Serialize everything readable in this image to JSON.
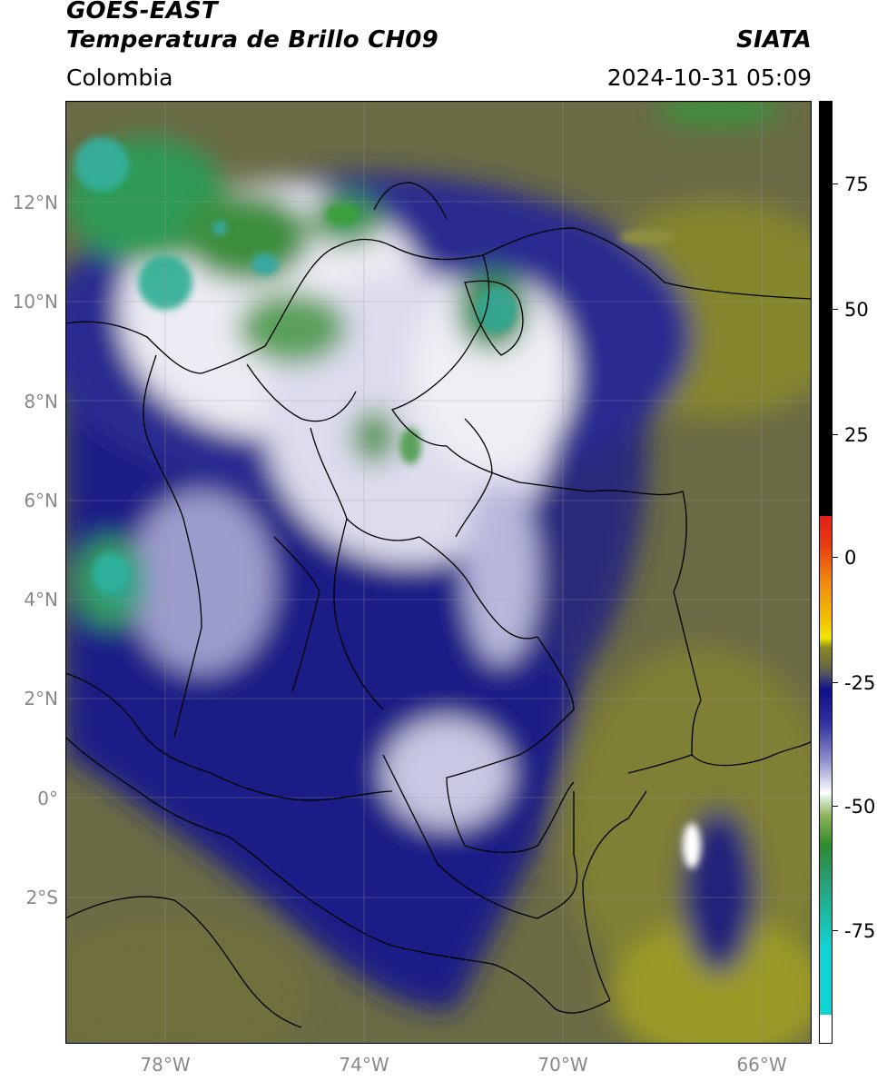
{
  "header": {
    "title_line1": "GOES-EAST",
    "title_line2": "Temperatura de Brillo CH09",
    "agency": "SIATA",
    "region": "Colombia",
    "datetime": "2024-10-31 05:09"
  },
  "map": {
    "lat_labels": [
      "12°N",
      "10°N",
      "8°N",
      "6°N",
      "4°N",
      "2°N",
      "0°",
      "2°S"
    ],
    "lon_labels": [
      "78°W",
      "74°W",
      "70°W",
      "66°W"
    ],
    "extent": {
      "lon": [
        -79.9,
        -64.9
      ],
      "lat": [
        -5.0,
        14.0
      ]
    },
    "grid": true
  },
  "colorbar": {
    "labels": [
      "75",
      "50",
      "25",
      "0",
      "-25",
      "-50",
      "-75"
    ],
    "range": [
      -95,
      90
    ],
    "colors": {
      "black": "#000000",
      "red": "#e0201a",
      "orange": "#f08a10",
      "yellow": "#f2e600",
      "olive": "#8a8a20",
      "gray": "#6a6a6a",
      "navy": "#10108a",
      "white": "#ffffff",
      "green": "#2e8a2e",
      "cyan": "#10d4d4"
    }
  }
}
